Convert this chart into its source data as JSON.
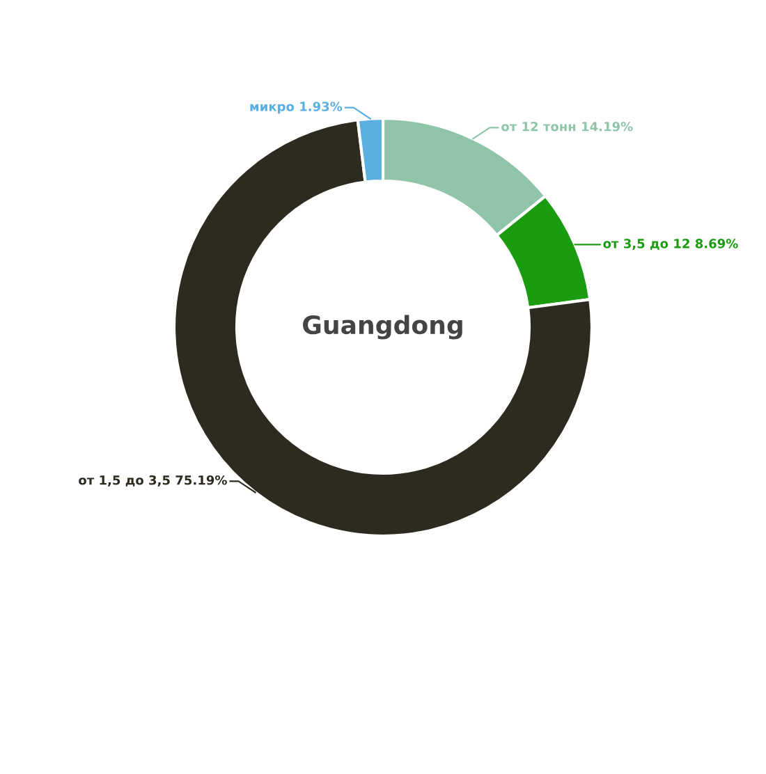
{
  "chart_data": {
    "type": "donut",
    "title": "Guangdong",
    "categories": [
      "от 12 тонн",
      "от 3,5 до 12",
      "от 1,5 до 3,5",
      "микро"
    ],
    "values": [
      14.19,
      8.69,
      75.19,
      1.93
    ],
    "value_labels": [
      "14.19%",
      "8.69%",
      "75.19%",
      "1.93%"
    ],
    "colors": [
      "#8fc4a8",
      "#1a9b10",
      "#2d2a1f",
      "#5aafe0"
    ],
    "legend": false
  }
}
